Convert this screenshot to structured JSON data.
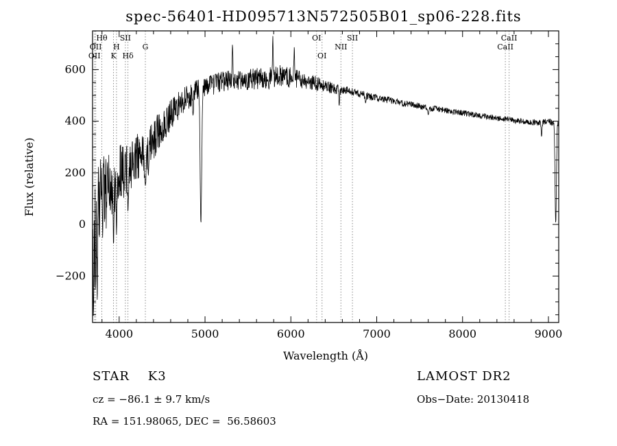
{
  "chart_data": {
    "type": "line",
    "title": "spec-56401-HD095713N572505B01_sp06-228.fits",
    "xlabel": "Wavelength (Å)",
    "ylabel": "Flux (relative)",
    "xlim": [
      3690,
      9120
    ],
    "ylim": [
      -380,
      750
    ],
    "xticks": [
      4000,
      5000,
      6000,
      7000,
      8000,
      9000
    ],
    "yticks": [
      -200,
      0,
      200,
      400,
      600
    ],
    "x_minor_step": 200,
    "y_minor_step": 50,
    "grid": false,
    "legend": "none",
    "line_color": "#000000",
    "marker_line_color": "#888888",
    "seed": 987654321,
    "sample_step_angstrom": 3,
    "spectral_lines": [
      {
        "label": "Hθ",
        "wavelength": 3798,
        "row": 1
      },
      {
        "label": "SII",
        "wavelength": 4072,
        "row": 1
      },
      {
        "label": "OII",
        "wavelength": 3727,
        "row": 2
      },
      {
        "label": "H",
        "wavelength": 3969,
        "row": 2
      },
      {
        "label": "G",
        "wavelength": 4305,
        "row": 2
      },
      {
        "label": "OII",
        "wavelength": 3712,
        "row": 3
      },
      {
        "label": "K",
        "wavelength": 3934,
        "row": 3
      },
      {
        "label": "Hδ",
        "wavelength": 4102,
        "row": 3
      },
      {
        "label": "OI",
        "wavelength": 6300,
        "row": 1
      },
      {
        "label": "SII",
        "wavelength": 6717,
        "row": 1
      },
      {
        "label": "NII",
        "wavelength": 6583,
        "row": 2
      },
      {
        "label": "OI",
        "wavelength": 6363,
        "row": 3
      },
      {
        "label": "CaII",
        "wavelength": 8542,
        "row": 1
      },
      {
        "label": "CaII",
        "wavelength": 8498,
        "row": 2
      }
    ],
    "continuum_points": [
      [
        3690,
        -30
      ],
      [
        3700,
        0
      ],
      [
        3720,
        20
      ],
      [
        3750,
        60
      ],
      [
        3800,
        90
      ],
      [
        3850,
        120
      ],
      [
        3900,
        145
      ],
      [
        3950,
        165
      ],
      [
        4000,
        195
      ],
      [
        4050,
        210
      ],
      [
        4100,
        225
      ],
      [
        4150,
        240
      ],
      [
        4200,
        255
      ],
      [
        4250,
        265
      ],
      [
        4300,
        272
      ],
      [
        4350,
        300
      ],
      [
        4400,
        330
      ],
      [
        4450,
        355
      ],
      [
        4500,
        380
      ],
      [
        4550,
        400
      ],
      [
        4600,
        425
      ],
      [
        4650,
        445
      ],
      [
        4700,
        462
      ],
      [
        4750,
        478
      ],
      [
        4800,
        492
      ],
      [
        4850,
        505
      ],
      [
        4900,
        518
      ],
      [
        4950,
        525
      ],
      [
        5000,
        532
      ],
      [
        5100,
        542
      ],
      [
        5200,
        552
      ],
      [
        5300,
        560
      ],
      [
        5400,
        556
      ],
      [
        5500,
        562
      ],
      [
        5600,
        566
      ],
      [
        5700,
        562
      ],
      [
        5800,
        572
      ],
      [
        5900,
        576
      ],
      [
        6000,
        570
      ],
      [
        6100,
        562
      ],
      [
        6200,
        556
      ],
      [
        6300,
        546
      ],
      [
        6400,
        536
      ],
      [
        6500,
        527
      ],
      [
        6600,
        521
      ],
      [
        6700,
        516
      ],
      [
        6800,
        507
      ],
      [
        6900,
        497
      ],
      [
        7000,
        491
      ],
      [
        7100,
        485
      ],
      [
        7200,
        478
      ],
      [
        7300,
        471
      ],
      [
        7400,
        465
      ],
      [
        7500,
        458
      ],
      [
        7600,
        451
      ],
      [
        7700,
        447
      ],
      [
        7800,
        442
      ],
      [
        7900,
        437
      ],
      [
        8000,
        432
      ],
      [
        8100,
        427
      ],
      [
        8200,
        422
      ],
      [
        8300,
        417
      ],
      [
        8400,
        412
      ],
      [
        8500,
        407
      ],
      [
        8600,
        403
      ],
      [
        8700,
        400
      ],
      [
        8800,
        397
      ],
      [
        8900,
        394
      ],
      [
        9000,
        399
      ],
      [
        9060,
        394
      ],
      [
        9120,
        390
      ]
    ],
    "noise_amplitude_points": [
      [
        3690,
        280
      ],
      [
        3750,
        240
      ],
      [
        3800,
        180
      ],
      [
        3850,
        150
      ],
      [
        3900,
        135
      ],
      [
        3950,
        125
      ],
      [
        4000,
        115
      ],
      [
        4100,
        105
      ],
      [
        4200,
        95
      ],
      [
        4300,
        88
      ],
      [
        4400,
        78
      ],
      [
        4500,
        68
      ],
      [
        4600,
        60
      ],
      [
        4700,
        54
      ],
      [
        4800,
        48
      ],
      [
        4900,
        45
      ],
      [
        5000,
        42
      ],
      [
        5200,
        40
      ],
      [
        5400,
        40
      ],
      [
        5600,
        42
      ],
      [
        5800,
        44
      ],
      [
        6000,
        40
      ],
      [
        6200,
        32
      ],
      [
        6400,
        26
      ],
      [
        6500,
        20
      ],
      [
        6700,
        16
      ],
      [
        7000,
        14
      ],
      [
        7500,
        12
      ],
      [
        8000,
        11
      ],
      [
        8500,
        11
      ],
      [
        9000,
        13
      ],
      [
        9120,
        13
      ]
    ],
    "features": [
      {
        "wavelength": 3700,
        "flux": -360,
        "sigma": 5
      },
      {
        "wavelength": 3727,
        "flux": -250,
        "sigma": 4
      },
      {
        "wavelength": 3745,
        "flux": -300,
        "sigma": 4
      },
      {
        "wavelength": 3934,
        "flux": -80,
        "sigma": 5
      },
      {
        "wavelength": 3969,
        "flux": -40,
        "sigma": 5
      },
      {
        "wavelength": 4102,
        "flux": 50,
        "sigma": 5
      },
      {
        "wavelength": 4305,
        "flux": 150,
        "sigma": 8
      },
      {
        "wavelength": 4341,
        "flux": 190,
        "sigma": 5
      },
      {
        "wavelength": 4861,
        "flux": 420,
        "sigma": 5
      },
      {
        "wavelength": 4952,
        "flux": 5,
        "sigma": 9
      },
      {
        "wavelength": 5320,
        "flux": 700,
        "sigma": 4
      },
      {
        "wavelength": 5790,
        "flux": 730,
        "sigma": 4
      },
      {
        "wavelength": 6040,
        "flux": 690,
        "sigma": 4
      },
      {
        "wavelength": 6563,
        "flux": 460,
        "sigma": 5
      },
      {
        "wavelength": 6870,
        "flux": 470,
        "sigma": 5
      },
      {
        "wavelength": 7600,
        "flux": 425,
        "sigma": 6
      },
      {
        "wavelength": 8920,
        "flux": 340,
        "sigma": 5
      },
      {
        "wavelength": 9085,
        "flux": 5,
        "sigma": 8
      }
    ]
  },
  "footer": {
    "class_line": "STAR    K3",
    "cz_line": "cz = −86.1 ± 9.7 km/s",
    "radec_line": "RA = 151.98065, DEC =  56.58603",
    "survey": "LAMOST DR2",
    "obsdate": "Obs−Date: 20130418"
  }
}
